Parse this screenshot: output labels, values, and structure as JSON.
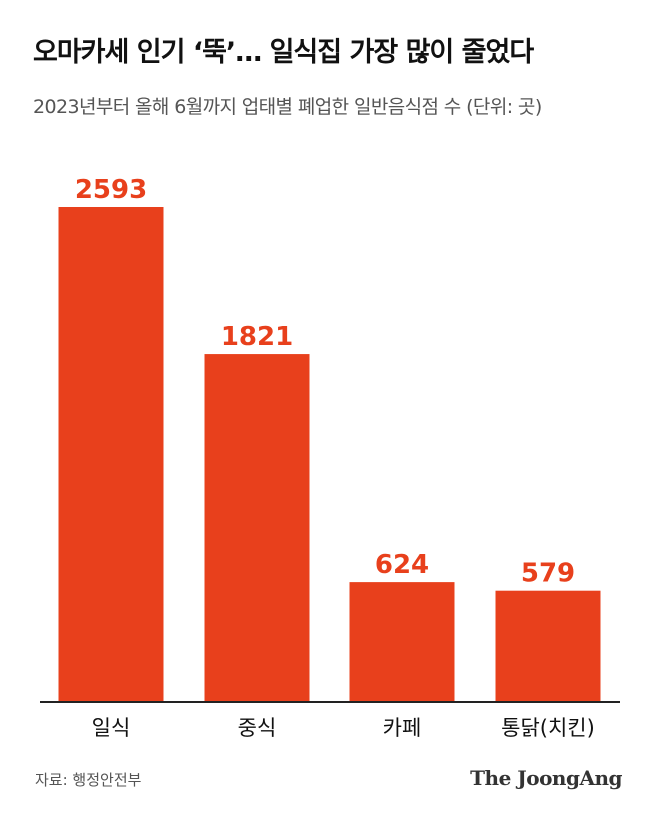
{
  "header": {
    "title": "오마카세 인기 ‘뚝’… 일식집 가장 많이 줄었다",
    "subtitle": "2023년부터 올해 6월까지 업태별 폐업한 일반음식점 수 (단위: 곳)"
  },
  "chart_data": {
    "type": "bar",
    "categories": [
      "일식",
      "중식",
      "카페",
      "통닭(치킨)"
    ],
    "values": [
      2593,
      1821,
      624,
      579
    ],
    "ylim": [
      0,
      2800
    ],
    "grid": false,
    "bar_color": "#e8401c",
    "label_color": "#e8401c"
  },
  "footer": {
    "source": "자료: 행정안전부",
    "logo": "The JoongAng"
  }
}
